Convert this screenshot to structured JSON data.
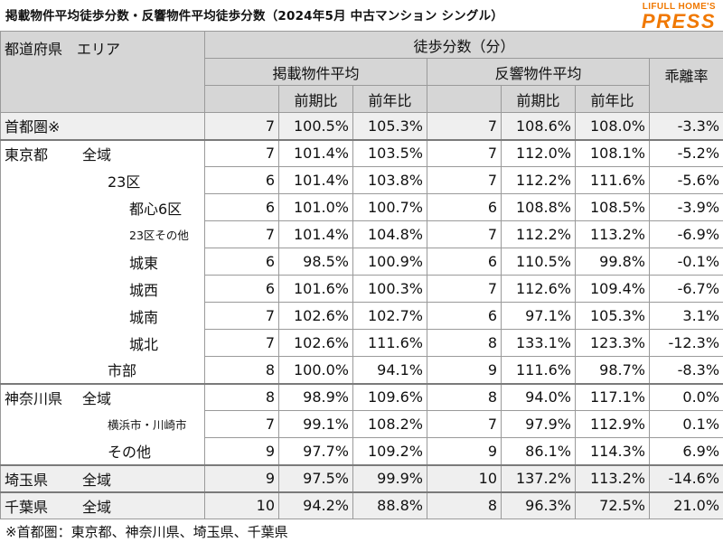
{
  "title": "掲載物件平均徒歩分数・反響物件平均徒歩分数（2024年5月 中古マンション シングル）",
  "logo": {
    "top": "LIFULL HOME'S",
    "main": "PRESS"
  },
  "header": {
    "area": "都道府県　エリア",
    "group": "徒歩分数（分）",
    "listed": "掲載物件平均",
    "inquiry": "反響物件平均",
    "divergence": "乖離率",
    "prev_period": "前期比",
    "prev_year": "前年比"
  },
  "rows": [
    {
      "pref": "首都圏※",
      "area": "",
      "l_min": "7",
      "l_pp": "100.5%",
      "l_py": "105.3%",
      "r_min": "7",
      "r_pp": "108.6%",
      "r_py": "108.0%",
      "div": "-3.3%"
    },
    {
      "pref": "東京都",
      "area": "全域",
      "l_min": "7",
      "l_pp": "101.4%",
      "l_py": "103.5%",
      "r_min": "7",
      "r_pp": "112.0%",
      "r_py": "108.1%",
      "div": "-5.2%"
    },
    {
      "pref": "",
      "area": "23区",
      "l_min": "6",
      "l_pp": "101.4%",
      "l_py": "103.8%",
      "r_min": "7",
      "r_pp": "112.2%",
      "r_py": "111.6%",
      "div": "-5.6%"
    },
    {
      "pref": "",
      "area": "都心6区",
      "l_min": "6",
      "l_pp": "101.0%",
      "l_py": "100.7%",
      "r_min": "6",
      "r_pp": "108.8%",
      "r_py": "108.5%",
      "div": "-3.9%"
    },
    {
      "pref": "",
      "area": "23区その他",
      "l_min": "7",
      "l_pp": "101.4%",
      "l_py": "104.8%",
      "r_min": "7",
      "r_pp": "112.2%",
      "r_py": "113.2%",
      "div": "-6.9%"
    },
    {
      "pref": "",
      "area": "城東",
      "l_min": "6",
      "l_pp": "98.5%",
      "l_py": "100.9%",
      "r_min": "6",
      "r_pp": "110.5%",
      "r_py": "99.8%",
      "div": "-0.1%"
    },
    {
      "pref": "",
      "area": "城西",
      "l_min": "6",
      "l_pp": "101.6%",
      "l_py": "100.3%",
      "r_min": "7",
      "r_pp": "112.6%",
      "r_py": "109.4%",
      "div": "-6.7%"
    },
    {
      "pref": "",
      "area": "城南",
      "l_min": "7",
      "l_pp": "102.6%",
      "l_py": "102.7%",
      "r_min": "6",
      "r_pp": "97.1%",
      "r_py": "105.3%",
      "div": "3.1%"
    },
    {
      "pref": "",
      "area": "城北",
      "l_min": "7",
      "l_pp": "102.6%",
      "l_py": "111.6%",
      "r_min": "8",
      "r_pp": "133.1%",
      "r_py": "123.3%",
      "div": "-12.3%"
    },
    {
      "pref": "",
      "area": "市部",
      "l_min": "8",
      "l_pp": "100.0%",
      "l_py": "94.1%",
      "r_min": "9",
      "r_pp": "111.6%",
      "r_py": "98.7%",
      "div": "-8.3%"
    },
    {
      "pref": "神奈川県",
      "area": "全域",
      "l_min": "8",
      "l_pp": "98.9%",
      "l_py": "109.6%",
      "r_min": "8",
      "r_pp": "94.0%",
      "r_py": "117.1%",
      "div": "0.0%"
    },
    {
      "pref": "",
      "area": "横浜市・川崎市",
      "l_min": "7",
      "l_pp": "99.1%",
      "l_py": "108.2%",
      "r_min": "7",
      "r_pp": "97.9%",
      "r_py": "112.9%",
      "div": "0.1%"
    },
    {
      "pref": "",
      "area": "その他",
      "l_min": "9",
      "l_pp": "97.7%",
      "l_py": "109.2%",
      "r_min": "9",
      "r_pp": "86.1%",
      "r_py": "114.3%",
      "div": "6.9%"
    },
    {
      "pref": "埼玉県",
      "area": "全域",
      "l_min": "9",
      "l_pp": "97.5%",
      "l_py": "99.9%",
      "r_min": "10",
      "r_pp": "137.2%",
      "r_py": "113.2%",
      "div": "-14.6%"
    },
    {
      "pref": "千葉県",
      "area": "全域",
      "l_min": "10",
      "l_pp": "94.2%",
      "l_py": "88.8%",
      "r_min": "8",
      "r_pp": "96.3%",
      "r_py": "72.5%",
      "div": "21.0%"
    }
  ],
  "note": "※首都圏：東京都、神奈川県、埼玉県、千葉県"
}
